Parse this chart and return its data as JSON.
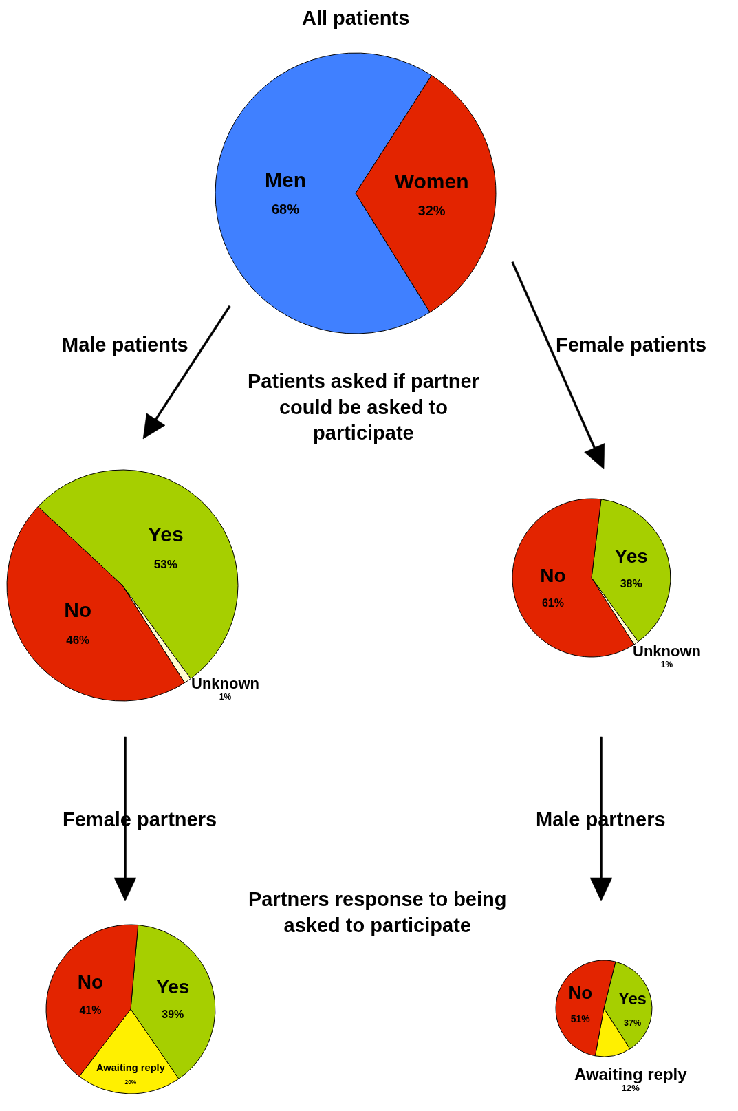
{
  "chart_data": [
    {
      "type": "pie",
      "title": "All patients",
      "categories": [
        "Men",
        "Women"
      ],
      "values": [
        68,
        32
      ],
      "colors": [
        "#4080ff",
        "#e32400"
      ],
      "value_labels": [
        "68%",
        "32%"
      ]
    },
    {
      "type": "pie",
      "title": "Male patients",
      "categories": [
        "Yes",
        "Unknown",
        "No"
      ],
      "values": [
        53,
        1,
        46
      ],
      "colors": [
        "#a6cf00",
        "#fffbd0",
        "#e32400"
      ],
      "value_labels": [
        "53%",
        "1%",
        "46%"
      ],
      "annotations": [
        "Patients asked if partner could be asked to participate"
      ]
    },
    {
      "type": "pie",
      "title": "Female patients",
      "categories": [
        "Yes",
        "Unknown",
        "No"
      ],
      "values": [
        38,
        1,
        61
      ],
      "colors": [
        "#a6cf00",
        "#fffbd0",
        "#e32400"
      ],
      "value_labels": [
        "38%",
        "1%",
        "61%"
      ]
    },
    {
      "type": "pie",
      "title": "Female partners",
      "categories": [
        "Yes",
        "Awaiting reply",
        "No"
      ],
      "values": [
        39,
        20,
        41
      ],
      "colors": [
        "#a6cf00",
        "#fff000",
        "#e32400"
      ],
      "value_labels": [
        "39%",
        "20%",
        "41%"
      ],
      "annotations": [
        "Partners response to being asked to participate"
      ]
    },
    {
      "type": "pie",
      "title": "Male partners",
      "categories": [
        "Yes",
        "Awaiting reply",
        "No"
      ],
      "values": [
        37,
        12,
        51
      ],
      "colors": [
        "#a6cf00",
        "#fff000",
        "#e32400"
      ],
      "value_labels": [
        "37%",
        "12%",
        "51%"
      ]
    }
  ]
}
